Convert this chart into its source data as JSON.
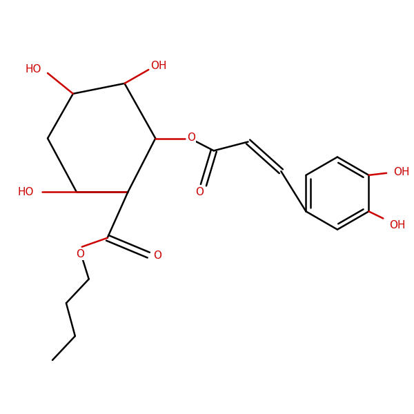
{
  "bond_color": "#000000",
  "heteroatom_color": "#cc0000",
  "background_color": "#ffffff",
  "line_width": 1.8,
  "font_size": 11,
  "figsize": [
    6.0,
    6.0
  ],
  "dpi": 100,
  "xlim": [
    0,
    10
  ],
  "ylim": [
    0,
    10
  ]
}
